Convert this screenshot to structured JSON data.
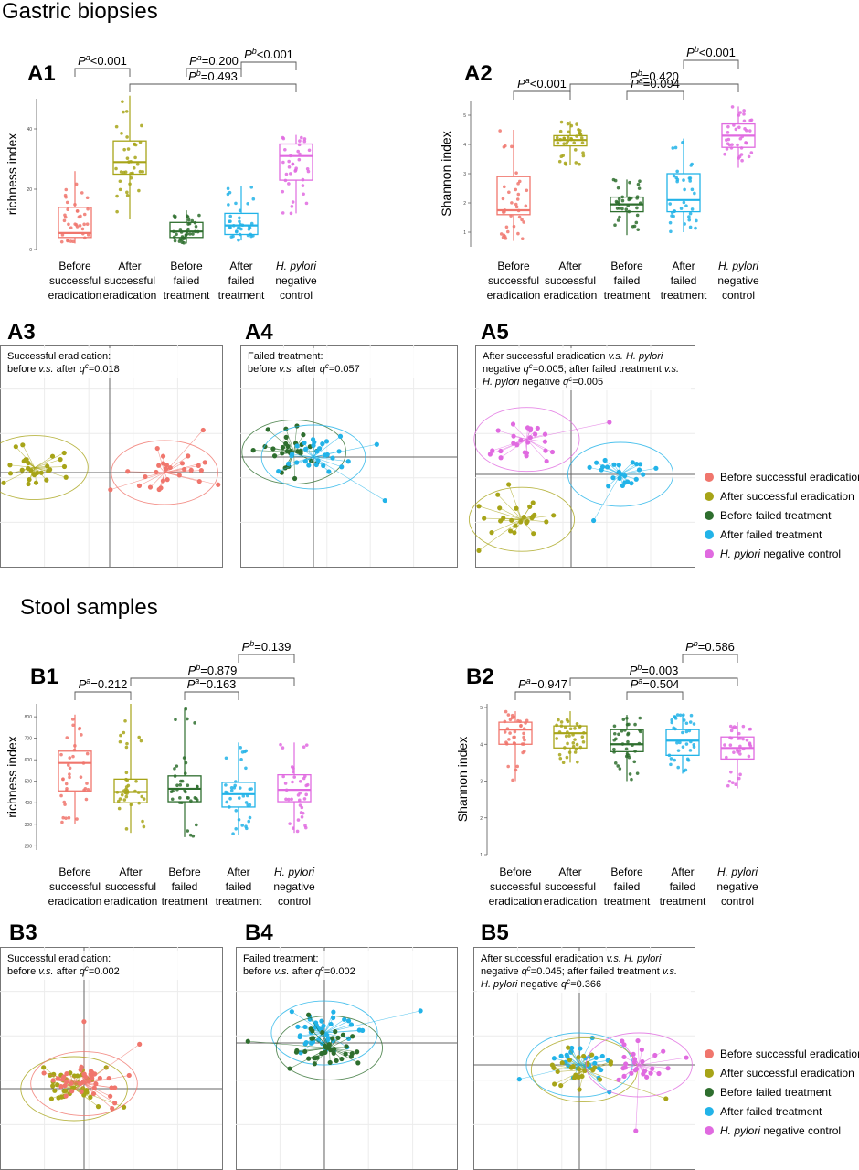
{
  "colors": {
    "before_success": "#F0766D",
    "after_success": "#A7A418",
    "before_failed": "#2E6E2E",
    "after_failed": "#22B3E8",
    "hp_negative": "#E06AE0"
  },
  "sections": {
    "gastric": "Gastric biopsies",
    "stool": "Stool samples"
  },
  "legend": [
    {
      "key": "before_success",
      "label": "Before successful eradication"
    },
    {
      "key": "after_success",
      "label": "After successful eradication"
    },
    {
      "key": "before_failed",
      "label": "Before failed treatment"
    },
    {
      "key": "after_failed",
      "label": "After failed treatment"
    },
    {
      "key": "hp_negative",
      "label": "negative control",
      "italic_prefix": "H. pylori"
    }
  ],
  "groups": [
    {
      "key": "before_success",
      "lines": [
        "Before",
        "successful",
        "eradication"
      ]
    },
    {
      "key": "after_success",
      "lines": [
        "After",
        "successful",
        "eradication"
      ]
    },
    {
      "key": "before_failed",
      "lines": [
        "Before",
        "failed",
        "treatment"
      ]
    },
    {
      "key": "after_failed",
      "lines": [
        "After",
        "failed",
        "treatment"
      ]
    },
    {
      "key": "hp_negative",
      "lines": [
        "H. pylori",
        "negative",
        "control"
      ],
      "italic_first": true
    }
  ],
  "chart_data": [
    {
      "id": "A1",
      "type": "box",
      "panel_label": "A1",
      "ylabel": "richness index",
      "ylim": [
        0,
        50
      ],
      "yticks": [
        0,
        20,
        40
      ],
      "boxes": [
        {
          "group": "before_success",
          "min": 2,
          "q1": 4,
          "median": 5.5,
          "q3": 14,
          "max": 26
        },
        {
          "group": "after_success",
          "min": 10,
          "q1": 25,
          "median": 29,
          "q3": 36,
          "max": 51
        },
        {
          "group": "before_failed",
          "min": 2,
          "q1": 4,
          "median": 6,
          "q3": 9,
          "max": 13
        },
        {
          "group": "after_failed",
          "min": 3,
          "q1": 5,
          "median": 8,
          "q3": 12,
          "max": 21
        },
        {
          "group": "hp_negative",
          "min": 12,
          "q1": 23,
          "median": 31,
          "q3": 35,
          "max": 38
        }
      ],
      "brackets": [
        {
          "from": 0,
          "to": 1,
          "letter": "a",
          "text": "<0.001",
          "level": 0
        },
        {
          "from": 2,
          "to": 3,
          "letter": "a",
          "text": "=0.200",
          "level": 0
        },
        {
          "from": 1,
          "to": 4,
          "letter": "b",
          "text": "=0.493",
          "level": 1
        },
        {
          "from": 3,
          "to": 4,
          "letter": "b",
          "text": "<0.001",
          "level": 2
        }
      ]
    },
    {
      "id": "A2",
      "type": "box",
      "panel_label": "A2",
      "ylabel": "Shannon index",
      "ylim": [
        0.5,
        5.5
      ],
      "yticks": [
        1,
        2,
        3,
        4,
        5
      ],
      "boxes": [
        {
          "group": "before_success",
          "min": 0.7,
          "q1": 1.6,
          "median": 1.75,
          "q3": 2.9,
          "max": 4.5
        },
        {
          "group": "after_success",
          "min": 3.3,
          "q1": 3.95,
          "median": 4.15,
          "q3": 4.3,
          "max": 4.8
        },
        {
          "group": "before_failed",
          "min": 0.9,
          "q1": 1.7,
          "median": 1.95,
          "q3": 2.2,
          "max": 2.8
        },
        {
          "group": "after_failed",
          "min": 1.0,
          "q1": 1.7,
          "median": 2.1,
          "q3": 3.0,
          "max": 4.2
        },
        {
          "group": "hp_negative",
          "min": 3.2,
          "q1": 3.9,
          "median": 4.3,
          "q3": 4.7,
          "max": 5.3
        }
      ],
      "brackets": [
        {
          "from": 0,
          "to": 1,
          "letter": "a",
          "text": "<0.001",
          "level": 0
        },
        {
          "from": 2,
          "to": 3,
          "letter": "a",
          "text": "=0.094",
          "level": 0
        },
        {
          "from": 1,
          "to": 4,
          "letter": "b",
          "text": "=0.420",
          "level": 1
        },
        {
          "from": 3,
          "to": 4,
          "letter": "b",
          "text": "<0.001",
          "level": 2
        }
      ]
    },
    {
      "id": "B1",
      "type": "box",
      "panel_label": "B1",
      "ylabel": "richness index",
      "ylim": [
        180,
        860
      ],
      "yticks": [
        200,
        300,
        400,
        500,
        600,
        700,
        800
      ],
      "boxes": [
        {
          "group": "before_success",
          "min": 300,
          "q1": 455,
          "median": 585,
          "q3": 640,
          "max": 810
        },
        {
          "group": "after_success",
          "min": 260,
          "q1": 400,
          "median": 450,
          "q3": 510,
          "max": 860
        },
        {
          "group": "before_failed",
          "min": 240,
          "q1": 405,
          "median": 465,
          "q3": 525,
          "max": 840
        },
        {
          "group": "after_failed",
          "min": 250,
          "q1": 380,
          "median": 440,
          "q3": 495,
          "max": 680
        },
        {
          "group": "hp_negative",
          "min": 260,
          "q1": 405,
          "median": 460,
          "q3": 530,
          "max": 680
        }
      ],
      "brackets": [
        {
          "from": 0,
          "to": 1,
          "letter": "a",
          "text": "=0.212",
          "level": 0
        },
        {
          "from": 2,
          "to": 3,
          "letter": "a",
          "text": "=0.163",
          "level": 0
        },
        {
          "from": 1,
          "to": 4,
          "letter": "b",
          "text": "=0.879",
          "level": 1
        },
        {
          "from": 3,
          "to": 4,
          "letter": "b",
          "text": "=0.139",
          "level": 2
        }
      ]
    },
    {
      "id": "B2",
      "type": "box",
      "panel_label": "B2",
      "ylabel": "Shannon index",
      "ylim": [
        1,
        5.1
      ],
      "yticks": [
        1,
        2,
        3,
        4,
        5
      ],
      "boxes": [
        {
          "group": "before_success",
          "min": 3.0,
          "q1": 4.0,
          "median": 4.4,
          "q3": 4.6,
          "max": 4.9
        },
        {
          "group": "after_success",
          "min": 3.5,
          "q1": 3.9,
          "median": 4.3,
          "q3": 4.5,
          "max": 4.9
        },
        {
          "group": "before_failed",
          "min": 3.0,
          "q1": 3.8,
          "median": 4.0,
          "q3": 4.4,
          "max": 4.8
        },
        {
          "group": "after_failed",
          "min": 3.2,
          "q1": 3.7,
          "median": 4.1,
          "q3": 4.4,
          "max": 4.8
        },
        {
          "group": "hp_negative",
          "min": 2.8,
          "q1": 3.6,
          "median": 3.9,
          "q3": 4.2,
          "max": 4.6
        }
      ],
      "brackets": [
        {
          "from": 0,
          "to": 1,
          "letter": "a",
          "text": "=0.947",
          "level": 0
        },
        {
          "from": 2,
          "to": 3,
          "letter": "a",
          "text": "=0.504",
          "level": 0
        },
        {
          "from": 1,
          "to": 4,
          "letter": "b",
          "text": "=0.003",
          "level": 1
        },
        {
          "from": 3,
          "to": 4,
          "letter": "b",
          "text": "=0.586",
          "level": 2
        }
      ]
    },
    {
      "id": "A3",
      "type": "scatter",
      "panel_label": "A3",
      "annotation": [
        "Successful eradication:",
        "before v.s. after q=0.018"
      ],
      "clusters": [
        {
          "group": "after_success",
          "cx": -0.75,
          "cy": 0.05
        },
        {
          "group": "before_success",
          "cx": 0.55,
          "cy": 0.0
        }
      ]
    },
    {
      "id": "A4",
      "type": "scatter",
      "panel_label": "A4",
      "annotation": [
        "Failed treatment:",
        "before v.s. after q=0.057"
      ],
      "clusters": [
        {
          "group": "before_failed",
          "cx": -0.2,
          "cy": 0.05
        },
        {
          "group": "after_failed",
          "cx": 0.0,
          "cy": 0.0
        }
      ]
    },
    {
      "id": "A5",
      "type": "scatter",
      "panel_label": "A5",
      "annotation": [
        "After successful eradication v.s. H. pylori",
        "negative q=0.005; after failed treatment v.s.",
        "H. pylori negative q=0.005"
      ],
      "clusters": [
        {
          "group": "hp_negative",
          "cx": -0.45,
          "cy": 0.35
        },
        {
          "group": "after_success",
          "cx": -0.5,
          "cy": -0.45
        },
        {
          "group": "after_failed",
          "cx": 0.5,
          "cy": 0.0
        }
      ]
    },
    {
      "id": "B3",
      "type": "scatter",
      "panel_label": "B3",
      "annotation": [
        "Successful eradication:",
        "before v.s. after q=0.002"
      ],
      "clusters": [
        {
          "group": "after_success",
          "cx": -0.1,
          "cy": 0.0
        },
        {
          "group": "before_success",
          "cx": 0.0,
          "cy": 0.05
        }
      ]
    },
    {
      "id": "B4",
      "type": "scatter",
      "panel_label": "B4",
      "annotation": [
        "Failed treatment:",
        "before v.s. after q=0.002"
      ],
      "clusters": [
        {
          "group": "after_failed",
          "cx": 0.0,
          "cy": 0.1
        },
        {
          "group": "before_failed",
          "cx": 0.05,
          "cy": -0.05
        }
      ]
    },
    {
      "id": "B5",
      "type": "scatter",
      "panel_label": "B5",
      "annotation": [
        "After successful eradication v.s. H. pylori",
        "negative q=0.045; after failed treatment v.s.",
        "H. pylori negative q=0.366"
      ],
      "clusters": [
        {
          "group": "after_failed",
          "cx": 0.0,
          "cy": 0.0
        },
        {
          "group": "after_success",
          "cx": 0.05,
          "cy": -0.05
        },
        {
          "group": "hp_negative",
          "cx": 0.6,
          "cy": 0.0
        }
      ]
    }
  ]
}
